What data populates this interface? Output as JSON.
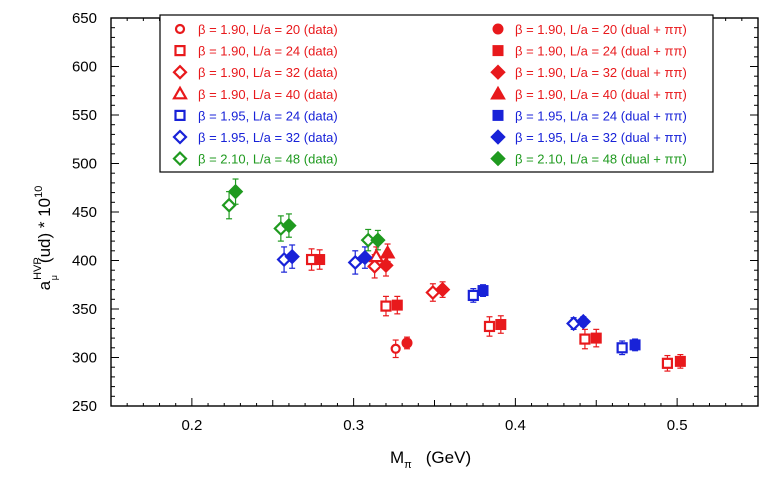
{
  "chart_data": {
    "type": "scatter",
    "xlabel_main": "M",
    "xlabel_sub": "π",
    "xlabel_unit": "(GeV)",
    "ylabel_main": "a",
    "ylabel_sup": "HVP",
    "ylabel_sub": "μ",
    "ylabel_rest": "(ud) * 10",
    "ylabel_exp": "10",
    "xlim": [
      0.15,
      0.55
    ],
    "ylim": [
      250,
      650
    ],
    "x_ticks": [
      0.2,
      0.3,
      0.4,
      0.5
    ],
    "x_tick_labels": [
      "0.2",
      "0.3",
      "0.4",
      "0.5"
    ],
    "y_ticks": [
      250,
      300,
      350,
      400,
      450,
      500,
      550,
      600,
      650
    ],
    "y_tick_labels": [
      "250",
      "300",
      "350",
      "400",
      "450",
      "500",
      "550",
      "600",
      "650"
    ],
    "grid": false,
    "legend_position": "top-right",
    "series": [
      {
        "name": "β = 1.90, L/a = 20 (data)",
        "color": "#e8191c",
        "marker": "circle",
        "filled": false,
        "points": [
          {
            "x": 0.326,
            "y": 309,
            "err": 9
          }
        ]
      },
      {
        "name": "β = 1.90, L/a = 24 (data)",
        "color": "#e8191c",
        "marker": "square",
        "filled": false,
        "points": [
          {
            "x": 0.274,
            "y": 401,
            "err": 11
          },
          {
            "x": 0.32,
            "y": 353,
            "err": 10
          },
          {
            "x": 0.384,
            "y": 332,
            "err": 10
          },
          {
            "x": 0.443,
            "y": 319,
            "err": 10
          },
          {
            "x": 0.494,
            "y": 294,
            "err": 8
          }
        ]
      },
      {
        "name": "β = 1.90, L/a = 32 (data)",
        "color": "#e8191c",
        "marker": "diamond",
        "filled": false,
        "points": [
          {
            "x": 0.313,
            "y": 394,
            "err": 12
          },
          {
            "x": 0.349,
            "y": 367,
            "err": 9
          }
        ]
      },
      {
        "name": "β = 1.90, L/a = 40 (data)",
        "color": "#e8191c",
        "marker": "triangle",
        "filled": false,
        "points": [
          {
            "x": 0.314,
            "y": 404,
            "err": 10
          }
        ]
      },
      {
        "name": "β = 1.95, L/a = 24 (data)",
        "color": "#1822d8",
        "marker": "square",
        "filled": false,
        "points": [
          {
            "x": 0.374,
            "y": 364,
            "err": 7
          },
          {
            "x": 0.466,
            "y": 310,
            "err": 7
          }
        ]
      },
      {
        "name": "β = 1.95, L/a = 32 (data)",
        "color": "#1822d8",
        "marker": "diamond",
        "filled": false,
        "points": [
          {
            "x": 0.257,
            "y": 401,
            "err": 13
          },
          {
            "x": 0.301,
            "y": 398,
            "err": 12
          },
          {
            "x": 0.436,
            "y": 335,
            "err": 6
          }
        ]
      },
      {
        "name": "β = 2.10, L/a = 48 (data)",
        "color": "#1f9a1f",
        "marker": "diamond",
        "filled": false,
        "points": [
          {
            "x": 0.223,
            "y": 457,
            "err": 14
          },
          {
            "x": 0.255,
            "y": 433,
            "err": 13
          },
          {
            "x": 0.309,
            "y": 421,
            "err": 11
          }
        ]
      },
      {
        "name": "β = 1.90, L/a = 20 (dual + ππ)",
        "color": "#e8191c",
        "marker": "circle",
        "filled": true,
        "points": [
          {
            "x": 0.333,
            "y": 315,
            "err": 6
          }
        ]
      },
      {
        "name": "β = 1.90, L/a = 24 (dual + ππ)",
        "color": "#e8191c",
        "marker": "square",
        "filled": true,
        "points": [
          {
            "x": 0.279,
            "y": 401,
            "err": 10
          },
          {
            "x": 0.327,
            "y": 354,
            "err": 9
          },
          {
            "x": 0.391,
            "y": 334,
            "err": 9
          },
          {
            "x": 0.45,
            "y": 320,
            "err": 9
          },
          {
            "x": 0.502,
            "y": 296,
            "err": 7
          }
        ]
      },
      {
        "name": "β = 1.90, L/a = 32 (dual + ππ)",
        "color": "#e8191c",
        "marker": "diamond",
        "filled": true,
        "points": [
          {
            "x": 0.32,
            "y": 395,
            "err": 11
          },
          {
            "x": 0.355,
            "y": 370,
            "err": 8
          }
        ]
      },
      {
        "name": "β = 1.90, L/a = 40 (dual + ππ)",
        "color": "#e8191c",
        "marker": "triangle",
        "filled": true,
        "points": [
          {
            "x": 0.321,
            "y": 408,
            "err": 9
          }
        ]
      },
      {
        "name": "β = 1.95, L/a = 24 (dual + ππ)",
        "color": "#1822d8",
        "marker": "square",
        "filled": true,
        "points": [
          {
            "x": 0.38,
            "y": 369,
            "err": 6
          },
          {
            "x": 0.474,
            "y": 313,
            "err": 6
          }
        ]
      },
      {
        "name": "β = 1.95, L/a = 32 (dual + ππ)",
        "color": "#1822d8",
        "marker": "diamond",
        "filled": true,
        "points": [
          {
            "x": 0.262,
            "y": 404,
            "err": 12
          },
          {
            "x": 0.307,
            "y": 403,
            "err": 11
          },
          {
            "x": 0.442,
            "y": 337,
            "err": 5
          }
        ]
      },
      {
        "name": "β = 2.10, L/a = 48 (dual + ππ)",
        "color": "#1f9a1f",
        "marker": "diamond",
        "filled": true,
        "points": [
          {
            "x": 0.227,
            "y": 471,
            "err": 13
          },
          {
            "x": 0.26,
            "y": 436,
            "err": 12
          },
          {
            "x": 0.315,
            "y": 421,
            "err": 10
          }
        ]
      }
    ]
  }
}
